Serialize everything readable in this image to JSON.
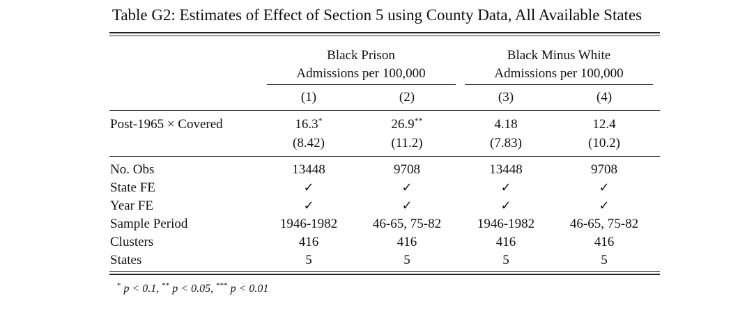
{
  "caption": "Table G2: Estimates of Effect of Section 5 using County Data, All Available States",
  "groups": [
    {
      "line1": "Black Prison",
      "line2": "Admissions per 100,000"
    },
    {
      "line1": "Black Minus White",
      "line2": "Admissions per 100,000"
    }
  ],
  "columns": [
    "(1)",
    "(2)",
    "(3)",
    "(4)"
  ],
  "coef": {
    "label": "Post-1965 × Covered",
    "estimates": [
      "16.3",
      "26.9",
      "4.18",
      "12.4"
    ],
    "stars": [
      "*",
      "**",
      "",
      ""
    ],
    "std_errors": [
      "(8.42)",
      "(11.2)",
      "(7.83)",
      "(10.2)"
    ]
  },
  "rows": [
    {
      "label": "No. Obs",
      "values": [
        "13448",
        "9708",
        "13448",
        "9708"
      ]
    },
    {
      "label": "State FE",
      "values": [
        "✓",
        "✓",
        "✓",
        "✓"
      ]
    },
    {
      "label": "Year FE",
      "values": [
        "✓",
        "✓",
        "✓",
        "✓"
      ]
    },
    {
      "label": "Sample Period",
      "values": [
        "1946-1982",
        "46-65, 75-82",
        "1946-1982",
        "46-65, 75-82"
      ]
    },
    {
      "label": "Clusters",
      "values": [
        "416",
        "416",
        "416",
        "416"
      ]
    },
    {
      "label": "States",
      "values": [
        "5",
        "5",
        "5",
        "5"
      ]
    }
  ],
  "note": {
    "s1": "*",
    "p1": "p < 0.1,",
    "s2": "**",
    "p2": "p < 0.05,",
    "s3": "***",
    "p3": "p < 0.01"
  }
}
